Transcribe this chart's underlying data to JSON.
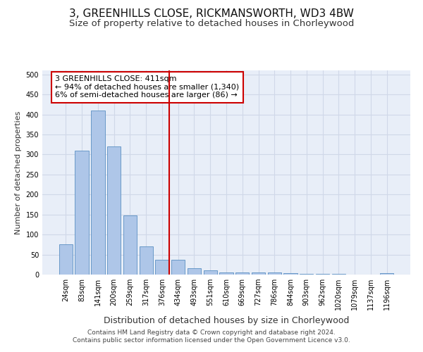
{
  "title": "3, GREENHILLS CLOSE, RICKMANSWORTH, WD3 4BW",
  "subtitle": "Size of property relative to detached houses in Chorleywood",
  "xlabel": "Distribution of detached houses by size in Chorleywood",
  "ylabel": "Number of detached properties",
  "bin_labels": [
    "24sqm",
    "83sqm",
    "141sqm",
    "200sqm",
    "259sqm",
    "317sqm",
    "376sqm",
    "434sqm",
    "493sqm",
    "551sqm",
    "610sqm",
    "669sqm",
    "727sqm",
    "786sqm",
    "844sqm",
    "903sqm",
    "962sqm",
    "1020sqm",
    "1079sqm",
    "1137sqm",
    "1196sqm"
  ],
  "bar_values": [
    75,
    310,
    410,
    320,
    148,
    70,
    37,
    37,
    16,
    10,
    5,
    6,
    6,
    5,
    3,
    2,
    1,
    1,
    0,
    0,
    3
  ],
  "bar_color": "#aec6e8",
  "bar_edge_color": "#5a8fc2",
  "grid_color": "#d0d8e8",
  "bg_color": "#e8eef8",
  "vline_color": "#cc0000",
  "vline_x_index": 6,
  "annotation_text": "3 GREENHILLS CLOSE: 411sqm\n← 94% of detached houses are smaller (1,340)\n6% of semi-detached houses are larger (86) →",
  "annotation_box_edge": "#cc0000",
  "ylim": [
    0,
    510
  ],
  "yticks": [
    0,
    50,
    100,
    150,
    200,
    250,
    300,
    350,
    400,
    450,
    500
  ],
  "footer": "Contains HM Land Registry data © Crown copyright and database right 2024.\nContains public sector information licensed under the Open Government Licence v3.0.",
  "title_fontsize": 11,
  "subtitle_fontsize": 9.5,
  "xlabel_fontsize": 9,
  "ylabel_fontsize": 8,
  "tick_fontsize": 7,
  "annotation_fontsize": 8,
  "footer_fontsize": 6.5
}
